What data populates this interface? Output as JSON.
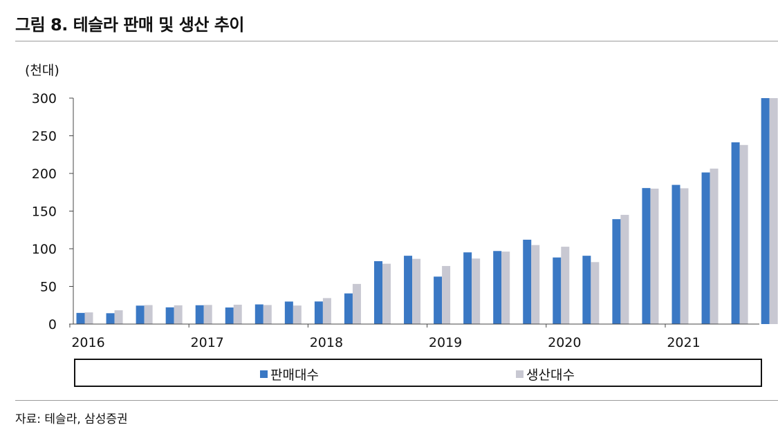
{
  "figure": {
    "title": "그림 8. 테슬라 판매 및 생산 추이",
    "source": "자료: 테슬라, 삼성증권"
  },
  "chart_data": {
    "type": "bar",
    "unit_label": "(천대)",
    "ylim": [
      0,
      300
    ],
    "yticks": [
      "0",
      "50",
      "100",
      "150",
      "200",
      "250",
      "300"
    ],
    "year_labels": [
      "2016",
      "2017",
      "2018",
      "2019",
      "2020",
      "2021"
    ],
    "categories": [
      "2016 Q1",
      "2016 Q2",
      "2016 Q3",
      "2016 Q4",
      "2017 Q1",
      "2017 Q2",
      "2017 Q3",
      "2017 Q4",
      "2018 Q1",
      "2018 Q2",
      "2018 Q3",
      "2018 Q4",
      "2019 Q1",
      "2019 Q2",
      "2019 Q3",
      "2019 Q4",
      "2020 Q1",
      "2020 Q2",
      "2020 Q3",
      "2020 Q4",
      "2021 Q1",
      "2021 Q2",
      "2021 Q3",
      "2021 Q4"
    ],
    "series": [
      {
        "name": "판매대수",
        "color": "#3a78c4",
        "values": [
          14.8,
          14.4,
          24.5,
          22.2,
          25.0,
          22.0,
          26.1,
          29.9,
          30.0,
          40.7,
          83.5,
          90.7,
          63.0,
          95.2,
          97.0,
          112.0,
          88.4,
          90.7,
          139.3,
          180.6,
          184.8,
          201.3,
          241.3,
          308.6
        ]
      },
      {
        "name": "생산대수",
        "color": "#c8c8d2",
        "values": [
          15.5,
          18.3,
          25.2,
          24.9,
          25.4,
          25.7,
          25.3,
          24.6,
          34.5,
          53.3,
          80.1,
          86.6,
          77.1,
          87.0,
          96.2,
          104.9,
          102.7,
          82.3,
          145.0,
          179.8,
          180.3,
          206.4,
          237.8,
          305.8
        ]
      }
    ],
    "grid": false,
    "legend_position": "bottom"
  }
}
